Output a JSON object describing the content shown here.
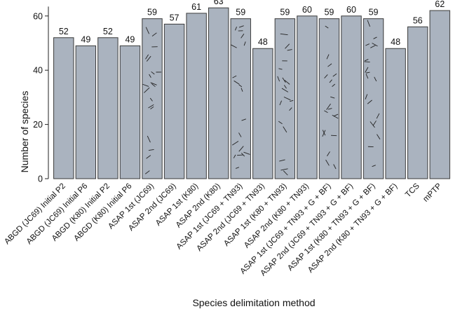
{
  "chart_data": {
    "type": "bar",
    "xlabel": "Species delimitation method",
    "ylabel": "Number of species",
    "ylim": [
      0,
      64
    ],
    "yticks": [
      0,
      20,
      40,
      60
    ],
    "grid": false,
    "categories": [
      "ABGD (JC69) Initial P2",
      "ABGD (JC69) Initial P6",
      "ABGD (K80) Initial P2",
      "ABGD (K80) Initial P6",
      "ASAP 1st (JC69)",
      "ASAP 2nd (JC69)",
      "ASAP 1st (K80)",
      "ASAP 2nd (K80)",
      "ASAP 1st (JC69 + TN93)",
      "ASAP 2nd (JC69 + TN93)",
      "ASAP 1st (K80 + TN93)",
      "ASAP 2nd (K80 + TN93)",
      "ASAP 1st (JC69 + TN93 + G + BF)",
      "ASAP 2nd (JC69 + TN93 + G + BF)",
      "ASAP 1st (K80 + TN93 + G + BF)",
      "ASAP 2nd (K80 + TN93 + G + BF)",
      "TCS",
      "mPTP"
    ],
    "values": [
      52,
      49,
      52,
      49,
      59,
      57,
      61,
      63,
      59,
      48,
      59,
      60,
      59,
      60,
      59,
      48,
      56,
      62
    ],
    "hatched": [
      false,
      false,
      false,
      false,
      true,
      false,
      false,
      false,
      true,
      false,
      true,
      false,
      true,
      false,
      true,
      false,
      false,
      false
    ],
    "colors": {
      "bar_fill": "#aab3bf",
      "bar_stroke": "#3a3a3a",
      "hatch": "#222222"
    }
  }
}
